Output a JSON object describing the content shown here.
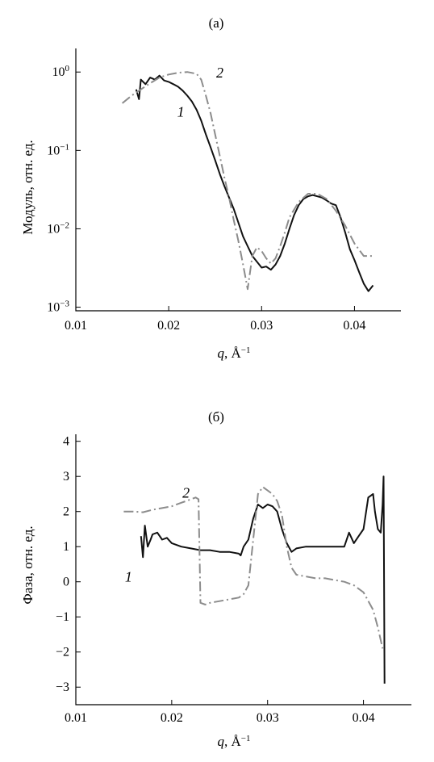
{
  "colors": {
    "series_1": "#111111",
    "series_2": "#8c8c8c"
  },
  "chart_data": [
    {
      "type": "line",
      "panel_label": "(а)",
      "xlabel_var": "q",
      "xlabel_unit": ", Å",
      "xlabel_exp": "−1",
      "ylabel": "Модуль, отн. ед.",
      "yscale": "log",
      "xlim": [
        0.01,
        0.045
      ],
      "ylim": [
        0.0009,
        2
      ],
      "grid": false,
      "x_ticks": [
        0.01,
        0.02,
        0.03,
        0.04
      ],
      "x_tick_labels": [
        "0.01",
        "0.02",
        "0.03",
        "0.04"
      ],
      "y_ticks": [
        1,
        0.1,
        0.01,
        0.001
      ],
      "y_tick_labels": [
        {
          "base": "10",
          "exp": "0"
        },
        {
          "base": "10",
          "exp": "−1"
        },
        {
          "base": "10",
          "exp": "−2"
        },
        {
          "base": "10",
          "exp": "−3"
        }
      ],
      "series": [
        {
          "label": "1",
          "label_pos": [
            0.0213,
            0.27
          ],
          "x": [
            0.0165,
            0.0168,
            0.017,
            0.0175,
            0.018,
            0.0185,
            0.019,
            0.0195,
            0.02,
            0.0205,
            0.021,
            0.0215,
            0.022,
            0.0225,
            0.023,
            0.0235,
            0.024,
            0.0245,
            0.025,
            0.0255,
            0.026,
            0.0265,
            0.027,
            0.0275,
            0.028,
            0.0285,
            0.029,
            0.0295,
            0.03,
            0.0305,
            0.031,
            0.0315,
            0.032,
            0.0325,
            0.033,
            0.0335,
            0.034,
            0.0345,
            0.035,
            0.0355,
            0.036,
            0.0365,
            0.037,
            0.0375,
            0.038,
            0.0385,
            0.039,
            0.0395,
            0.04,
            0.0405,
            0.041,
            0.0415,
            0.042
          ],
          "y": [
            0.6,
            0.45,
            0.8,
            0.7,
            0.85,
            0.8,
            0.9,
            0.78,
            0.75,
            0.7,
            0.65,
            0.58,
            0.5,
            0.42,
            0.33,
            0.24,
            0.16,
            0.11,
            0.075,
            0.05,
            0.035,
            0.025,
            0.018,
            0.012,
            0.008,
            0.006,
            0.0045,
            0.0038,
            0.0032,
            0.0033,
            0.003,
            0.0035,
            0.0045,
            0.0065,
            0.01,
            0.015,
            0.02,
            0.024,
            0.026,
            0.027,
            0.026,
            0.025,
            0.023,
            0.021,
            0.02,
            0.014,
            0.009,
            0.0055,
            0.004,
            0.0028,
            0.002,
            0.0016,
            0.0019
          ]
        },
        {
          "label": "2",
          "label_pos": [
            0.0255,
            0.85
          ],
          "x": [
            0.015,
            0.016,
            0.017,
            0.018,
            0.019,
            0.02,
            0.021,
            0.022,
            0.023,
            0.0235,
            0.024,
            0.0245,
            0.025,
            0.0255,
            0.026,
            0.0265,
            0.027,
            0.0275,
            0.028,
            0.0285,
            0.029,
            0.0295,
            0.03,
            0.0305,
            0.031,
            0.0315,
            0.032,
            0.0325,
            0.033,
            0.034,
            0.035,
            0.036,
            0.037,
            0.038,
            0.039,
            0.04,
            0.041,
            0.042
          ],
          "y": [
            0.4,
            0.5,
            0.6,
            0.72,
            0.85,
            0.93,
            0.98,
            1.0,
            0.95,
            0.8,
            0.5,
            0.3,
            0.16,
            0.085,
            0.045,
            0.025,
            0.013,
            0.007,
            0.0035,
            0.0017,
            0.0045,
            0.0058,
            0.0052,
            0.0042,
            0.0036,
            0.0042,
            0.006,
            0.009,
            0.014,
            0.022,
            0.028,
            0.028,
            0.024,
            0.017,
            0.011,
            0.0065,
            0.0045,
            0.0045
          ]
        }
      ]
    },
    {
      "type": "line",
      "panel_label": "(б)",
      "xlabel_var": "q",
      "xlabel_unit": ", Å",
      "xlabel_exp": "−1",
      "ylabel": "Фаза, отн. ед.",
      "yscale": "linear",
      "xlim": [
        0.01,
        0.045
      ],
      "ylim": [
        -3.5,
        4.2
      ],
      "grid": false,
      "x_ticks": [
        0.01,
        0.02,
        0.03,
        0.04
      ],
      "x_tick_labels": [
        "0.01",
        "0.02",
        "0.03",
        "0.04"
      ],
      "y_ticks": [
        4,
        3,
        2,
        1,
        0,
        -1,
        -2,
        -3
      ],
      "y_tick_labels": [
        "4",
        "3",
        "2",
        "1",
        "0",
        "−1",
        "−2",
        "−3"
      ],
      "series": [
        {
          "label": "1",
          "label_pos": [
            0.0155,
            0.0
          ],
          "x": [
            0.0168,
            0.017,
            0.0172,
            0.0175,
            0.0178,
            0.018,
            0.0185,
            0.019,
            0.0195,
            0.02,
            0.021,
            0.022,
            0.023,
            0.024,
            0.025,
            0.026,
            0.027,
            0.0272,
            0.0275,
            0.028,
            0.0285,
            0.029,
            0.0295,
            0.03,
            0.0305,
            0.031,
            0.0315,
            0.032,
            0.0325,
            0.033,
            0.034,
            0.035,
            0.036,
            0.037,
            0.038,
            0.0385,
            0.039,
            0.0395,
            0.04,
            0.0405,
            0.041,
            0.0412,
            0.0415,
            0.0418,
            0.042,
            0.0421,
            0.0422
          ],
          "y": [
            1.3,
            0.7,
            1.6,
            1.0,
            1.2,
            1.35,
            1.4,
            1.2,
            1.25,
            1.1,
            1.0,
            0.95,
            0.9,
            0.9,
            0.85,
            0.85,
            0.8,
            0.75,
            1.0,
            1.2,
            1.8,
            2.2,
            2.1,
            2.2,
            2.15,
            2.0,
            1.5,
            1.1,
            0.85,
            0.95,
            1.0,
            1.0,
            1.0,
            1.0,
            1.0,
            1.4,
            1.1,
            1.3,
            1.5,
            2.4,
            2.5,
            2.0,
            1.5,
            1.4,
            2.2,
            3.0,
            -2.9
          ]
        },
        {
          "label": "2",
          "label_pos": [
            0.0215,
            2.4
          ],
          "x": [
            0.015,
            0.016,
            0.017,
            0.018,
            0.019,
            0.02,
            0.021,
            0.0215,
            0.0225,
            0.0228,
            0.023,
            0.0235,
            0.024,
            0.025,
            0.026,
            0.027,
            0.0275,
            0.028,
            0.0285,
            0.029,
            0.0295,
            0.03,
            0.0305,
            0.031,
            0.0315,
            0.032,
            0.0325,
            0.033,
            0.034,
            0.035,
            0.036,
            0.037,
            0.038,
            0.039,
            0.04,
            0.041,
            0.0415,
            0.042
          ],
          "y": [
            2.0,
            2.0,
            1.98,
            2.05,
            2.1,
            2.15,
            2.25,
            2.3,
            2.4,
            2.35,
            -0.6,
            -0.65,
            -0.6,
            -0.55,
            -0.5,
            -0.45,
            -0.35,
            -0.1,
            1.2,
            2.5,
            2.7,
            2.6,
            2.5,
            2.3,
            1.9,
            1.0,
            0.4,
            0.2,
            0.15,
            0.1,
            0.1,
            0.05,
            0.0,
            -0.1,
            -0.3,
            -0.8,
            -1.3,
            -1.9
          ]
        }
      ]
    }
  ]
}
